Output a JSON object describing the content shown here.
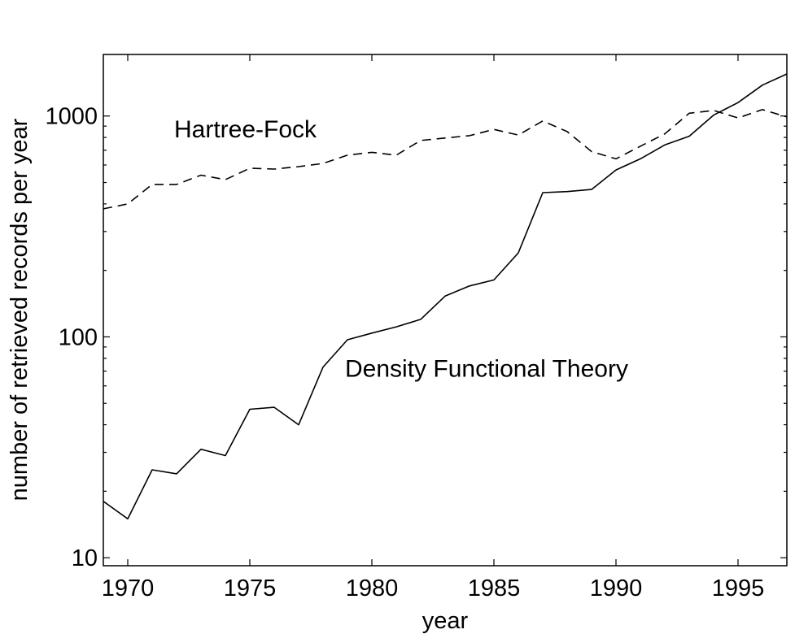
{
  "chart_data": {
    "type": "line",
    "title": "",
    "xlabel": "year",
    "ylabel": "number of retrieved records per year",
    "xlim": [
      1969,
      1997
    ],
    "ylim": [
      9.2,
      1900
    ],
    "yscale": "log",
    "grid": false,
    "legend": "none",
    "x_ticks": [
      1970,
      1975,
      1980,
      1985,
      1990,
      1995
    ],
    "y_ticks": [
      10,
      100,
      1000
    ],
    "x_tick_labels": [
      "1970",
      "1975",
      "1980",
      "1985",
      "1990",
      "1995"
    ],
    "y_tick_labels": [
      "10",
      "100",
      "1000"
    ],
    "x": [
      1969,
      1970,
      1971,
      1972,
      1973,
      1974,
      1975,
      1976,
      1977,
      1978,
      1979,
      1980,
      1981,
      1982,
      1983,
      1984,
      1985,
      1986,
      1987,
      1988,
      1989,
      1990,
      1991,
      1992,
      1993,
      1994,
      1995,
      1996,
      1997
    ],
    "series": [
      {
        "name": "Hartree-Fock",
        "style": "dashed",
        "label_at": [
          1972,
          800
        ],
        "values": [
          380,
          400,
          490,
          490,
          540,
          515,
          580,
          575,
          590,
          610,
          665,
          685,
          665,
          775,
          795,
          815,
          870,
          820,
          950,
          850,
          690,
          640,
          730,
          830,
          1030,
          1060,
          980,
          1070,
          990
        ]
      },
      {
        "name": "Density Functional Theory",
        "style": "solid",
        "label_at": [
          1979,
          66
        ],
        "values": [
          18,
          15,
          25,
          24,
          31,
          29,
          47,
          48,
          40,
          73,
          97,
          104,
          111,
          120,
          153,
          170,
          181,
          240,
          450,
          455,
          465,
          570,
          640,
          740,
          810,
          1010,
          1150,
          1380,
          1550
        ]
      }
    ]
  }
}
